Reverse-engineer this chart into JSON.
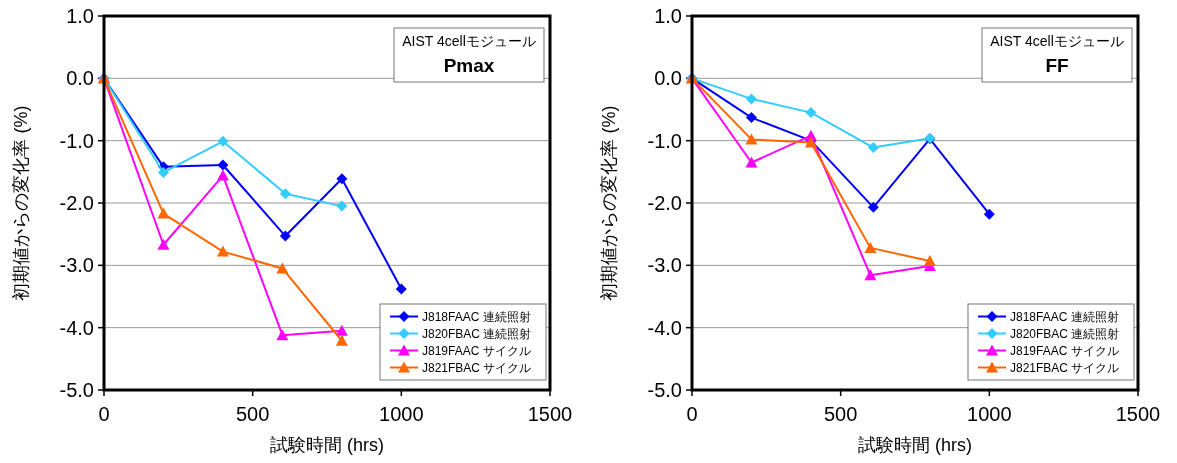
{
  "chart_data": [
    {
      "type": "line",
      "title": "Pmax",
      "subtitle": "AIST 4cellモジュール",
      "xlabel": "試験時間 (hrs)",
      "ylabel": "初期値からの変化率 (%)",
      "xlim": [
        0,
        1500
      ],
      "xticks": [
        0,
        500,
        1000,
        1500
      ],
      "ylim": [
        -5,
        1
      ],
      "yticks": [
        {
          "value": -5,
          "label": "-5.0"
        },
        {
          "value": -4,
          "label": "-4.0"
        },
        {
          "value": -3,
          "label": "-3.0"
        },
        {
          "value": -2,
          "label": "-2.0"
        },
        {
          "value": -1,
          "label": "-1.0"
        },
        {
          "value": 0,
          "label": "0.0"
        },
        {
          "value": 1,
          "label": "1.0"
        }
      ],
      "grid": "y",
      "legend": "bottom right",
      "series": [
        {
          "name": "J818FAAC 連続照射",
          "color": "#0000ff",
          "marker": "diamond",
          "x": [
            0,
            200,
            400,
            610,
            800,
            1000
          ],
          "values": [
            0,
            -1.42,
            -1.39,
            -2.53,
            -1.61,
            -3.38
          ]
        },
        {
          "name": "J820FBAC 連続照射",
          "color": "#33ccff",
          "marker": "diamond",
          "x": [
            0,
            200,
            400,
            610,
            800
          ],
          "values": [
            0,
            -1.51,
            -1.01,
            -1.85,
            -2.05
          ]
        },
        {
          "name": "J819FAAC サイクル",
          "color": "#ff00ff",
          "marker": "triangle",
          "x": [
            0,
            200,
            400,
            600,
            800
          ],
          "values": [
            0,
            -2.67,
            -1.56,
            -4.12,
            -4.05
          ]
        },
        {
          "name": "J821FBAC サイクル",
          "color": "#ff6600",
          "marker": "triangle",
          "x": [
            0,
            200,
            400,
            600,
            800
          ],
          "values": [
            0,
            -2.17,
            -2.78,
            -3.05,
            -4.21
          ]
        }
      ]
    },
    {
      "type": "line",
      "title": "FF",
      "subtitle": "AIST 4cellモジュール",
      "xlabel": "試験時間 (hrs)",
      "ylabel": "初期値からの変化率 (%)",
      "xlim": [
        0,
        1500
      ],
      "xticks": [
        0,
        500,
        1000,
        1500
      ],
      "ylim": [
        -5,
        1
      ],
      "yticks": [
        {
          "value": -5,
          "label": "-5.0"
        },
        {
          "value": -4,
          "label": "-4.0"
        },
        {
          "value": -3,
          "label": "-3.0"
        },
        {
          "value": -2,
          "label": "-2.0"
        },
        {
          "value": -1,
          "label": "-1.0"
        },
        {
          "value": 0,
          "label": "0.0"
        },
        {
          "value": 1,
          "label": "1.0"
        }
      ],
      "grid": "y",
      "legend": "bottom right",
      "series": [
        {
          "name": "J818FAAC 連続照射",
          "color": "#0000ff",
          "marker": "diamond",
          "x": [
            0,
            200,
            400,
            610,
            800,
            1000
          ],
          "values": [
            0,
            -0.63,
            -1.0,
            -2.07,
            -0.97,
            -2.18
          ]
        },
        {
          "name": "J820FBAC 連続照射",
          "color": "#33ccff",
          "marker": "diamond",
          "x": [
            0,
            200,
            400,
            610,
            800
          ],
          "values": [
            0,
            -0.33,
            -0.55,
            -1.11,
            -0.96
          ]
        },
        {
          "name": "J819FAAC サイクル",
          "color": "#ff00ff",
          "marker": "triangle",
          "x": [
            0,
            200,
            400,
            600,
            800
          ],
          "values": [
            0,
            -1.35,
            -0.92,
            -3.16,
            -3.01
          ]
        },
        {
          "name": "J821FBAC サイクル",
          "color": "#ff6600",
          "marker": "triangle",
          "x": [
            0,
            200,
            400,
            600,
            800
          ],
          "values": [
            0,
            -0.98,
            -1.03,
            -2.72,
            -2.93
          ]
        }
      ]
    }
  ]
}
